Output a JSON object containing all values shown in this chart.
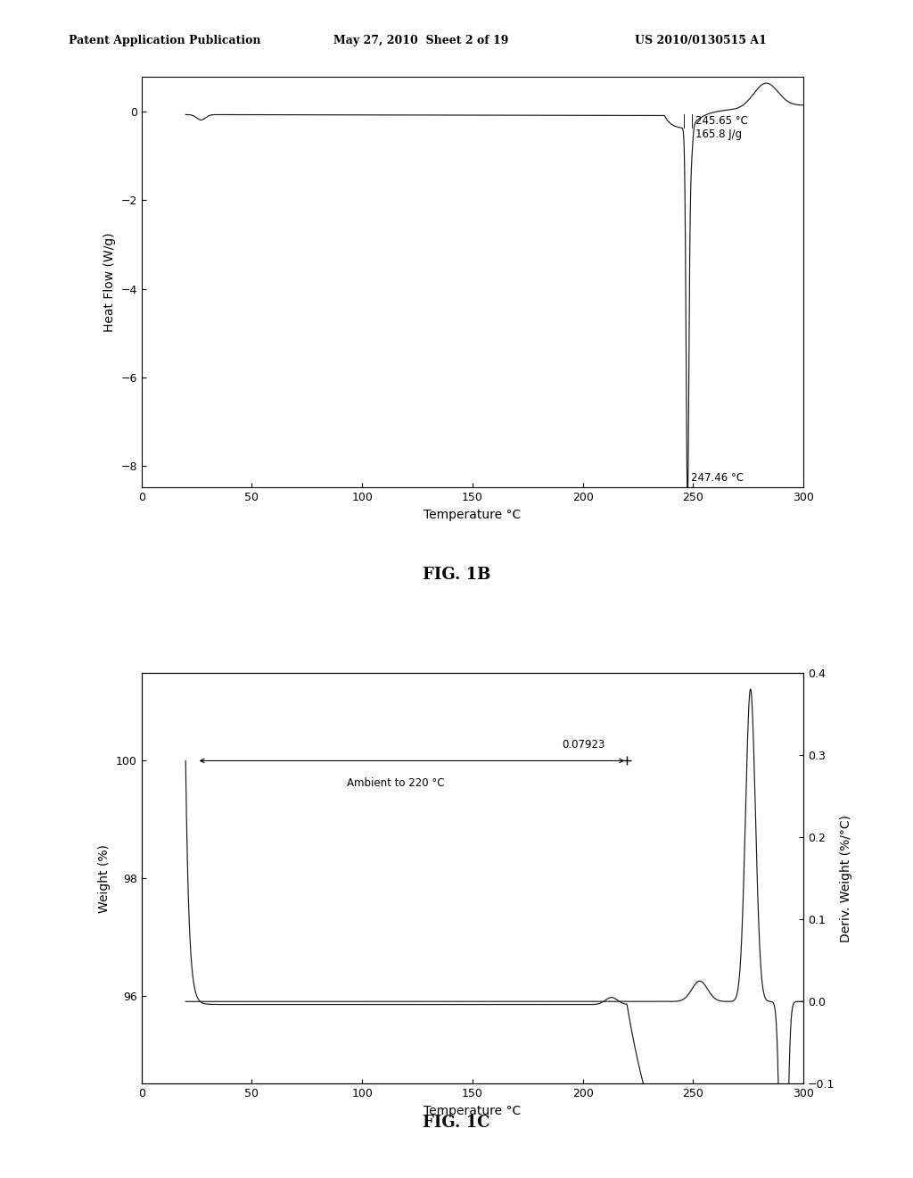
{
  "header_left": "Patent Application Publication",
  "header_mid": "May 27, 2010  Sheet 2 of 19",
  "header_right": "US 2010/0130515 A1",
  "fig1b": {
    "title": "FIG. 1B",
    "xlabel": "Temperature °C",
    "ylabel": "Heat Flow (W/g)",
    "xlim": [
      0,
      300
    ],
    "ylim": [
      -8.5,
      0.8
    ],
    "yticks": [
      0,
      -2,
      -4,
      -6,
      -8
    ],
    "xticks": [
      0,
      50,
      100,
      150,
      200,
      250,
      300
    ],
    "annotation1": "245.65 °C",
    "annotation2": "165.8 J/g",
    "annotation3": "247.46 °C"
  },
  "fig1c": {
    "title": "FIG. 1C",
    "xlabel": "Temperature °C",
    "ylabel": "Weight (%)",
    "ylabel2": "Deriv. Weight (%/°C)",
    "xlim": [
      0,
      300
    ],
    "ylim_left": [
      94.5,
      101.5
    ],
    "ylim_right": [
      -0.1,
      0.4
    ],
    "yticks_left": [
      96,
      98,
      100
    ],
    "yticks_right": [
      -0.1,
      0.0,
      0.1,
      0.2,
      0.3,
      0.4
    ],
    "xticks": [
      0,
      50,
      100,
      150,
      200,
      250,
      300
    ],
    "annotation1": "0.07923",
    "annotation2": "Ambient to 220 °C"
  },
  "bg_color": "#ffffff",
  "line_color": "#1a1a1a",
  "text_color": "#000000"
}
